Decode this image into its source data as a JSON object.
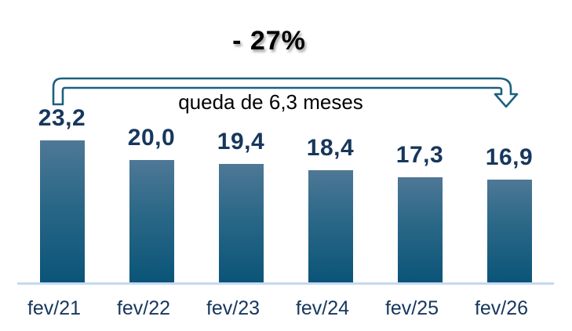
{
  "chart_data": {
    "type": "bar",
    "title": "- 27%",
    "annotation": "queda de 6,3 meses",
    "categories": [
      "fev/21",
      "fev/22",
      "fev/23",
      "fev/24",
      "fev/25",
      "fev/26"
    ],
    "values": [
      23.2,
      20.0,
      19.4,
      18.4,
      17.3,
      16.9
    ],
    "values_display": [
      "23,2",
      "20,0",
      "19,4",
      "18,4",
      "17,3",
      "16,9"
    ],
    "unit": "meses",
    "ylim": [
      0,
      24
    ],
    "gridlines": false,
    "legend": "none",
    "arrow_icon": "bent-arrow-down-right",
    "colors": {
      "bar_gradient_top": "#4e7896",
      "bar_gradient_mid": "#2a6787",
      "bar_gradient_bottom": "#0a5478",
      "arrow_outline": "#1d6080",
      "arrow_fill": "#ffffff",
      "axis_line": "#c5d9f0",
      "value_label": "#17375d",
      "tick_label": "#17375d",
      "title_text": "#000000"
    }
  }
}
